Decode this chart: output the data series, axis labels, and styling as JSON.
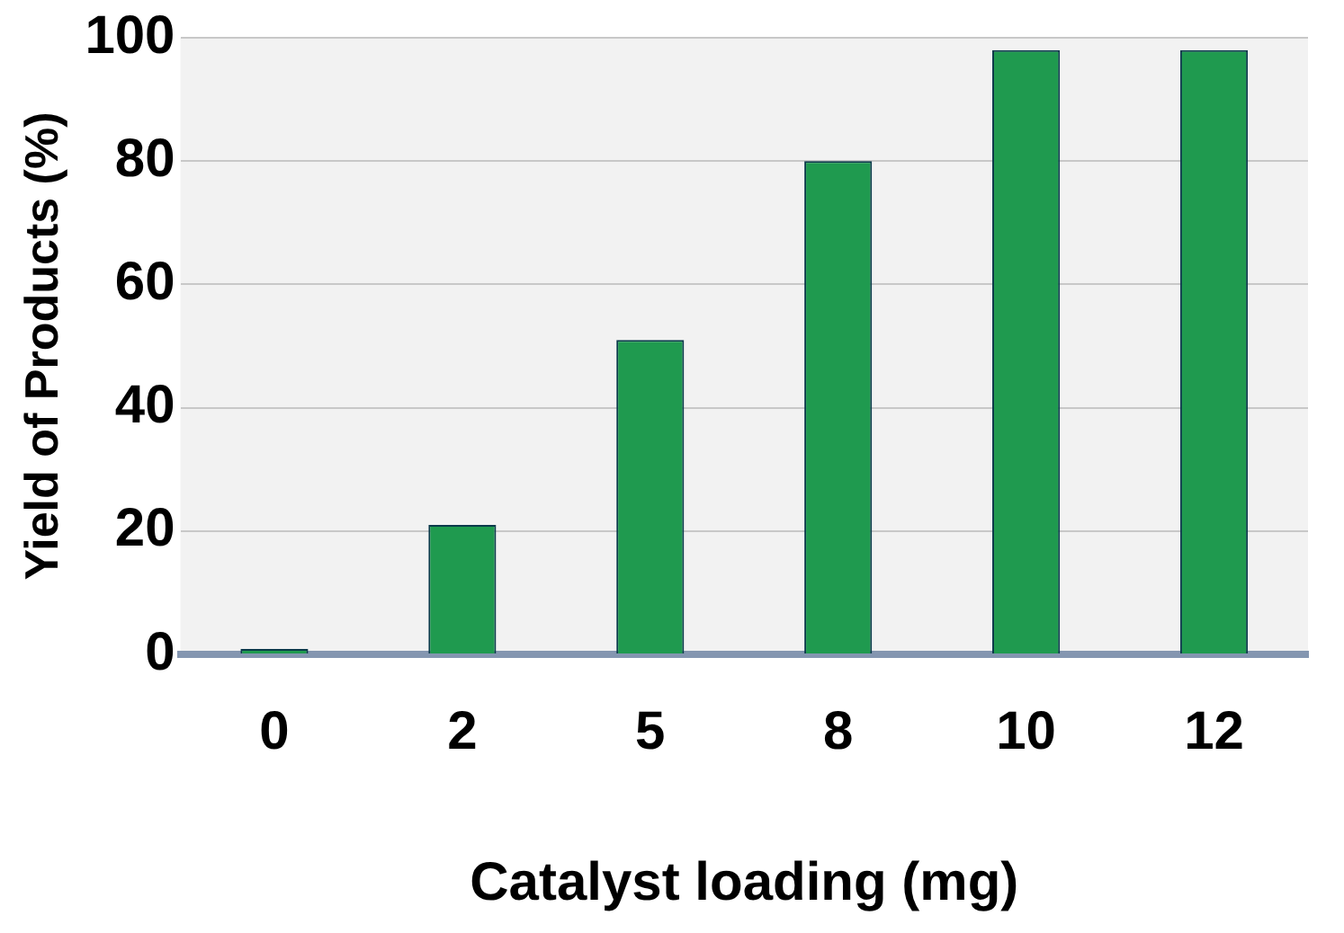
{
  "chart_data": {
    "type": "bar",
    "xlabel": "Catalyst loading (mg)",
    "ylabel": "Yield of Products (%)",
    "categories": [
      "0",
      "2",
      "5",
      "8",
      "10",
      "12"
    ],
    "values": [
      0,
      21,
      51,
      80,
      98,
      98
    ],
    "color": "#1f9a4f",
    "ylim": [
      0,
      100
    ],
    "yticks": [
      0,
      20,
      40,
      60,
      80,
      100
    ],
    "grid": "y"
  }
}
